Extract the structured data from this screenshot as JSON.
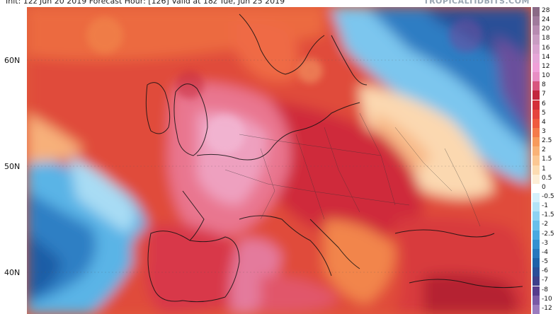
{
  "header": {
    "text": "Init: 12z Jun 20 2019   Forecast Hour: [126]   Valid at 18z Tue, Jun 25 2019",
    "brand": "TROPICALTIDBITS.COM"
  },
  "lat_labels": [
    "60N",
    "50N",
    "40N"
  ],
  "legend": {
    "items": [
      {
        "label": "28",
        "color": "#8a6a86"
      },
      {
        "label": "24",
        "color": "#a07a9c"
      },
      {
        "label": "20",
        "color": "#b78bb1"
      },
      {
        "label": "18",
        "color": "#c99cc2"
      },
      {
        "label": "16",
        "color": "#d9a3cf"
      },
      {
        "label": "14",
        "color": "#e6a6d8"
      },
      {
        "label": "12",
        "color": "#f0a0d8"
      },
      {
        "label": "10",
        "color": "#e88ec4"
      },
      {
        "label": "8",
        "color": "#d8557f"
      },
      {
        "label": "7",
        "color": "#c2273e"
      },
      {
        "label": "6",
        "color": "#d42f3a"
      },
      {
        "label": "5",
        "color": "#e5443d"
      },
      {
        "label": "4",
        "color": "#ef5a3f"
      },
      {
        "label": "3",
        "color": "#f47a4a"
      },
      {
        "label": "2.5",
        "color": "#f79a5c"
      },
      {
        "label": "2",
        "color": "#f9b277"
      },
      {
        "label": "1.5",
        "color": "#fbc793"
      },
      {
        "label": "1",
        "color": "#fcdcb2"
      },
      {
        "label": "0.5",
        "color": "#fdeed6"
      },
      {
        "label": "0",
        "color": "#ffffff"
      },
      {
        "label": "-0.5",
        "color": "#d6f0fb"
      },
      {
        "label": "-1",
        "color": "#b4e3f7"
      },
      {
        "label": "-1.5",
        "color": "#8ed2f2"
      },
      {
        "label": "-2",
        "color": "#69bfeb"
      },
      {
        "label": "-2.5",
        "color": "#4aa9e0"
      },
      {
        "label": "-3",
        "color": "#3590d0"
      },
      {
        "label": "-4",
        "color": "#2878bd"
      },
      {
        "label": "-5",
        "color": "#1f62a8"
      },
      {
        "label": "-6",
        "color": "#2a4f98"
      },
      {
        "label": "-7",
        "color": "#3d3f8a"
      },
      {
        "label": "-8",
        "color": "#563c8c"
      },
      {
        "label": "-10",
        "color": "#7a5aa6"
      },
      {
        "label": "-12",
        "color": "#9b7bbd"
      }
    ]
  }
}
